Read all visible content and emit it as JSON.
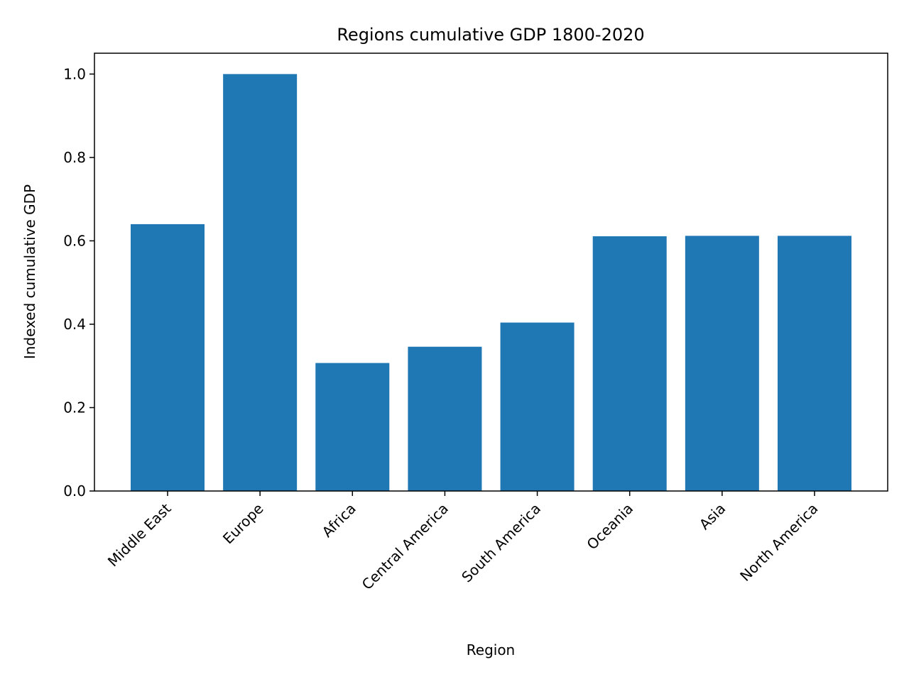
{
  "chart_data": {
    "type": "bar",
    "title": "Regions cumulative GDP 1800-2020",
    "xlabel": "Region",
    "ylabel": "Indexed cumulative GDP",
    "categories": [
      "Middle East",
      "Europe",
      "Africa",
      "Central America",
      "South America",
      "Oceania",
      "Asia",
      "North America"
    ],
    "values": [
      0.64,
      1.0,
      0.307,
      0.346,
      0.404,
      0.611,
      0.612,
      0.612
    ],
    "ylim": [
      0,
      1.05
    ],
    "yticks": [
      0.0,
      0.2,
      0.4,
      0.6,
      0.8,
      1.0
    ],
    "ytick_labels": [
      "0.0",
      "0.2",
      "0.4",
      "0.6",
      "0.8",
      "1.0"
    ],
    "bar_color": "#1f77b4",
    "grid": false,
    "legend": "none"
  }
}
